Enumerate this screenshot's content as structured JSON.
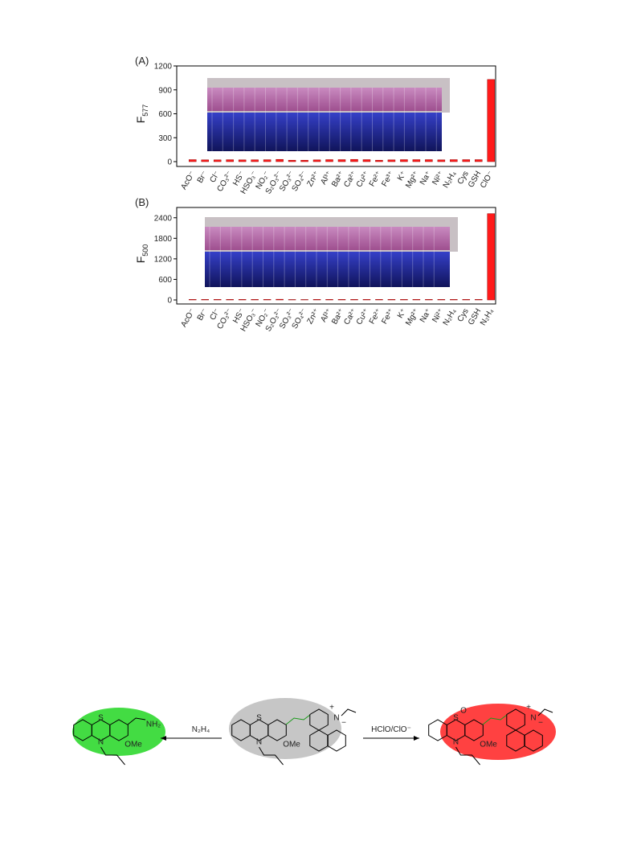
{
  "chart_data": [
    {
      "type": "bar",
      "panel": "(A)",
      "ylabel": "F",
      "ylabel_sub": "577",
      "categories": [
        "AcO⁻",
        "Br⁻",
        "Cl⁻",
        "CO₃²⁻",
        "HS⁻",
        "HSO₃⁻",
        "NO₂⁻",
        "S₂O₃²⁻",
        "SO₃²⁻",
        "SO₄²⁻",
        "Zn²⁺",
        "Al³⁺",
        "Ba²⁺",
        "Ca²⁺",
        "Cu²⁺",
        "Fe²⁺",
        "Fe³⁺",
        "K⁺",
        "Mg²⁺",
        "Na⁺",
        "Ni²⁺",
        "N₂H₄",
        "Cys",
        "GSH",
        "ClO⁻"
      ],
      "values": [
        25,
        22,
        22,
        24,
        22,
        23,
        24,
        28,
        18,
        18,
        22,
        25,
        25,
        28,
        25,
        18,
        22,
        25,
        25,
        25,
        22,
        25,
        25,
        25,
        1030
      ],
      "color": "#ff1a1a",
      "ylim": [
        0,
        1200
      ],
      "yticks": [
        0,
        300,
        600,
        900,
        1200
      ]
    },
    {
      "type": "bar",
      "panel": "(B)",
      "ylabel": "F",
      "ylabel_sub": "500",
      "categories": [
        "AcO⁻",
        "Br⁻",
        "Cl⁻",
        "CO₃²⁻",
        "HS⁻",
        "HSO₃⁻",
        "NO₂⁻",
        "S₂O₃²⁻",
        "SO₃²⁻",
        "SO₄²⁻",
        "Zn²⁺",
        "Al³⁺",
        "Ba²⁺",
        "Ca²⁺",
        "Cu²⁺",
        "Fe²⁺",
        "Fe³⁺",
        "K⁺",
        "Mg²⁺",
        "Na⁺",
        "Ni²⁺",
        "N₂H₄",
        "Cys",
        "GSH",
        "N₂H₄"
      ],
      "values": [
        15,
        15,
        15,
        15,
        15,
        15,
        15,
        20,
        12,
        12,
        15,
        15,
        15,
        15,
        15,
        15,
        15,
        15,
        15,
        15,
        15,
        15,
        15,
        15,
        2520
      ],
      "color": "#ff1a1a",
      "ylim": [
        0,
        2700
      ],
      "yticks": [
        0,
        600,
        1200,
        1800,
        2400
      ]
    }
  ],
  "scheme": {
    "reagent_left": "N₂H₄",
    "reagent_right": "HClO/ClO⁻",
    "left": {
      "s": "S",
      "n": "N",
      "nh2": "NH₂",
      "ome": "OMe"
    },
    "middle": {
      "s": "S",
      "n": "N",
      "ome": "OMe",
      "n2": "N",
      "plus": "+",
      "minus": "−"
    },
    "right": {
      "s": "S",
      "o": "O",
      "n": "N",
      "ome": "OMe",
      "n2": "N",
      "plus": "+",
      "minus": "−"
    }
  }
}
